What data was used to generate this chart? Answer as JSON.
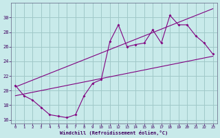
{
  "xlabel": "Windchill (Refroidissement éolien,°C)",
  "line_color": "#800080",
  "bg_color": "#c8eaea",
  "grid_color": "#a0c8c8",
  "xlim": [
    -0.5,
    23.5
  ],
  "ylim": [
    15.5,
    32.0
  ],
  "xticks": [
    0,
    1,
    2,
    3,
    4,
    5,
    6,
    7,
    8,
    9,
    10,
    11,
    12,
    13,
    14,
    15,
    16,
    17,
    18,
    19,
    20,
    21,
    22,
    23
  ],
  "yticks": [
    16,
    18,
    20,
    22,
    24,
    26,
    28,
    30
  ],
  "line1_x": [
    0,
    1,
    2,
    3,
    4,
    5,
    6,
    7,
    8,
    9,
    10,
    11,
    12,
    13,
    14,
    15,
    16,
    17,
    18,
    19,
    20,
    21,
    22,
    23
  ],
  "line1_y": [
    20.7,
    19.3,
    18.7,
    17.7,
    16.7,
    16.5,
    16.3,
    16.7,
    19.3,
    21.0,
    21.5,
    26.7,
    29.0,
    26.0,
    26.3,
    26.5,
    28.3,
    26.5,
    30.3,
    29.0,
    29.0,
    27.5,
    26.5,
    25.0
  ],
  "line2_x": [
    0,
    23
  ],
  "line2_y": [
    19.3,
    24.7
  ],
  "line3_x": [
    0,
    23
  ],
  "line3_y": [
    20.5,
    31.2
  ]
}
